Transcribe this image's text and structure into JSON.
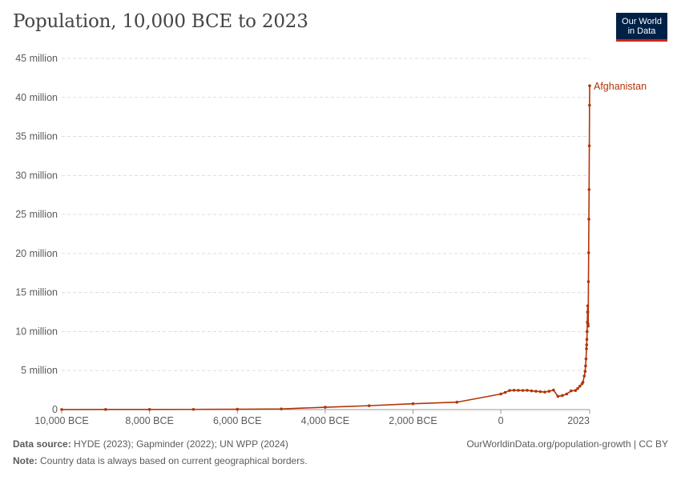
{
  "header": {
    "title": "Population, 10,000 BCE to 2023",
    "logo_line1": "Our World",
    "logo_line2": "in Data"
  },
  "footer": {
    "source_label": "Data source:",
    "source_text": "HYDE (2023); Gapminder (2022); UN WPP (2024)",
    "url_text": "OurWorldinData.org/population-growth | CC BY",
    "note_label": "Note:",
    "note_text": "Country data is always based on current geographical borders."
  },
  "colors": {
    "series": "#b13507",
    "grid": "#dddddd",
    "axis": "#999999",
    "text": "#5b5b5b",
    "logo_bg": "#002147",
    "logo_accent": "#ce261e"
  },
  "chart_data": {
    "type": "line",
    "title": "Population, 10,000 BCE to 2023",
    "xlabel": "",
    "ylabel": "",
    "xlim": [
      -10000,
      2023
    ],
    "ylim": [
      0,
      45000000
    ],
    "y_ticks": [
      {
        "value": 0,
        "label": "0"
      },
      {
        "value": 5000000,
        "label": "5 million"
      },
      {
        "value": 10000000,
        "label": "10 million"
      },
      {
        "value": 15000000,
        "label": "15 million"
      },
      {
        "value": 20000000,
        "label": "20 million"
      },
      {
        "value": 25000000,
        "label": "25 million"
      },
      {
        "value": 30000000,
        "label": "30 million"
      },
      {
        "value": 35000000,
        "label": "35 million"
      },
      {
        "value": 40000000,
        "label": "40 million"
      },
      {
        "value": 45000000,
        "label": "45 million"
      }
    ],
    "x_ticks": [
      {
        "value": -10000,
        "label": "10,000 BCE"
      },
      {
        "value": -8000,
        "label": "8,000 BCE"
      },
      {
        "value": -6000,
        "label": "6,000 BCE"
      },
      {
        "value": -4000,
        "label": "4,000 BCE"
      },
      {
        "value": -2000,
        "label": "2,000 BCE"
      },
      {
        "value": 0,
        "label": "0"
      },
      {
        "value": 2023,
        "label": "2023"
      }
    ],
    "grid": true,
    "series": [
      {
        "name": "Afghanistan",
        "x": [
          -10000,
          -9000,
          -8000,
          -7000,
          -6000,
          -5000,
          -4000,
          -3000,
          -2000,
          -1000,
          0,
          100,
          200,
          300,
          400,
          500,
          600,
          700,
          800,
          900,
          1000,
          1100,
          1200,
          1300,
          1400,
          1500,
          1600,
          1700,
          1750,
          1800,
          1850,
          1870,
          1900,
          1920,
          1930,
          1940,
          1950,
          1955,
          1960,
          1965,
          1970,
          1975,
          1978,
          1980,
          1985,
          1990,
          1995,
          2000,
          2005,
          2010,
          2015,
          2020,
          2023
        ],
        "y": [
          10000,
          15000,
          20000,
          25000,
          40000,
          90000,
          300000,
          500000,
          750000,
          950000,
          2000000,
          2200000,
          2450000,
          2480000,
          2470000,
          2460000,
          2470000,
          2400000,
          2350000,
          2300000,
          2250000,
          2350000,
          2500000,
          1700000,
          1800000,
          2000000,
          2400000,
          2450000,
          2700000,
          3000000,
          3300000,
          3500000,
          4300000,
          4900000,
          5600000,
          6500000,
          7800000,
          8300000,
          9000000,
          10000000,
          11200000,
          12500000,
          13300000,
          12500000,
          11000000,
          10700000,
          16400000,
          20100000,
          24400000,
          28200000,
          33800000,
          39000000,
          41500000
        ]
      }
    ]
  }
}
